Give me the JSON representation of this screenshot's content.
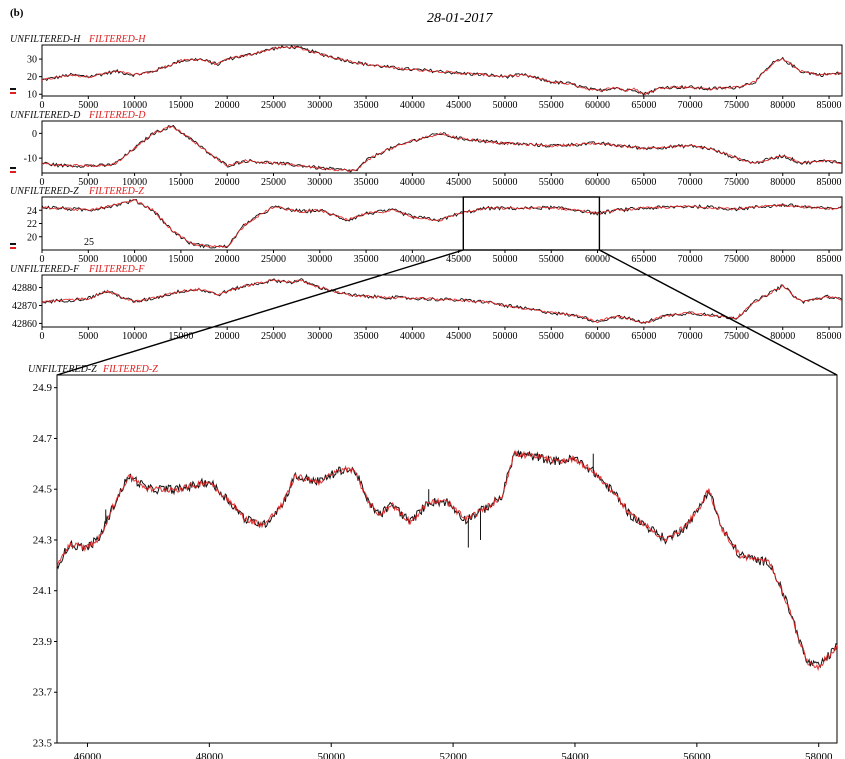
{
  "figure": {
    "panel_label": "(b)",
    "date": "28-01-2017"
  },
  "colors": {
    "unfiltered": "#111111",
    "filtered": "#e02020",
    "frame": "#000000"
  },
  "chart_data": [
    {
      "type": "line",
      "id": "H",
      "legend": [
        "UNFILTERED-H",
        "FILTERED-H"
      ],
      "series": [
        {
          "name": "UNFILTERED-H"
        },
        {
          "name": "FILTERED-H"
        }
      ],
      "xlim": [
        0,
        86400
      ],
      "ylim": [
        9,
        38
      ],
      "yticks": [
        10,
        20,
        30
      ],
      "xticks": [
        0,
        5000,
        10000,
        15000,
        20000,
        25000,
        30000,
        35000,
        40000,
        45000,
        50000,
        55000,
        60000,
        65000,
        70000,
        75000,
        80000,
        85000
      ],
      "x": [
        0,
        3000,
        5000,
        8000,
        10000,
        12000,
        15000,
        17000,
        19000,
        20000,
        22000,
        25000,
        27000,
        28000,
        30000,
        33000,
        35000,
        38000,
        40000,
        43000,
        45000,
        48000,
        50000,
        52000,
        55000,
        57000,
        59000,
        60000,
        62000,
        63000,
        64000,
        65000,
        67000,
        70000,
        72000,
        75000,
        77000,
        79000,
        80000,
        82000,
        84000,
        86400
      ],
      "y": [
        18,
        21,
        20,
        23,
        21,
        23,
        29,
        30,
        27,
        30,
        32,
        36,
        37,
        36,
        33,
        29,
        27,
        25,
        24,
        23,
        22,
        21,
        20,
        21,
        17,
        16,
        13,
        12,
        14,
        12,
        13,
        10,
        14,
        14,
        13,
        14,
        17,
        28,
        30,
        23,
        21,
        22
      ]
    },
    {
      "type": "line",
      "id": "D",
      "legend": [
        "UNFILTERED-D",
        "FILTERED-D"
      ],
      "series": [
        {
          "name": "UNFILTERED-D"
        },
        {
          "name": "FILTERED-D"
        }
      ],
      "xlim": [
        0,
        86400
      ],
      "ylim": [
        -16,
        5
      ],
      "yticks": [
        -10,
        0
      ],
      "xticks": [
        0,
        5000,
        10000,
        15000,
        20000,
        25000,
        30000,
        35000,
        40000,
        45000,
        50000,
        55000,
        60000,
        65000,
        70000,
        75000,
        80000,
        85000
      ],
      "x": [
        0,
        2000,
        5000,
        7000,
        8000,
        10000,
        12000,
        14000,
        16000,
        18000,
        20000,
        22000,
        25000,
        28000,
        30000,
        33000,
        34000,
        35000,
        37000,
        40000,
        42000,
        43000,
        45000,
        50000,
        55000,
        60000,
        65000,
        70000,
        72000,
        75000,
        77000,
        80000,
        82000,
        85000,
        86400
      ],
      "y": [
        -12,
        -13,
        -13,
        -13,
        -12,
        -6,
        0,
        3,
        -2,
        -8,
        -13,
        -11,
        -12,
        -13,
        -14,
        -15,
        -15,
        -11,
        -7,
        -3,
        -1,
        0,
        -2,
        -4,
        -5,
        -4,
        -6,
        -5,
        -6,
        -10,
        -12,
        -9,
        -12,
        -11,
        -12
      ]
    },
    {
      "type": "line",
      "id": "Z",
      "legend": [
        "UNFILTERED-Z",
        "FILTERED-Z"
      ],
      "series": [
        {
          "name": "UNFILTERED-Z"
        },
        {
          "name": "FILTERED-Z"
        }
      ],
      "annotation": "25",
      "xlim": [
        0,
        86400
      ],
      "ylim": [
        18,
        26
      ],
      "yticks": [
        20,
        22,
        24
      ],
      "xticks": [
        0,
        5000,
        10000,
        15000,
        20000,
        25000,
        30000,
        35000,
        40000,
        45000,
        50000,
        55000,
        60000,
        65000,
        70000,
        75000,
        80000,
        85000
      ],
      "zoom_range": [
        45500,
        60200
      ],
      "x": [
        0,
        5000,
        8000,
        10000,
        12000,
        14000,
        16000,
        18000,
        20000,
        22000,
        25000,
        28000,
        30000,
        33000,
        35000,
        38000,
        40000,
        43000,
        45000,
        48000,
        52000,
        55000,
        58000,
        60000,
        62000,
        65000,
        70000,
        75000,
        80000,
        85000,
        86400
      ],
      "y": [
        24.5,
        24,
        24.8,
        25.5,
        24,
        21,
        19,
        18.5,
        18.5,
        22,
        24.5,
        23.8,
        24,
        22.5,
        23.5,
        24,
        23,
        22.5,
        23.5,
        24.3,
        24.3,
        24.4,
        24,
        23.5,
        24,
        24.3,
        24.6,
        24.2,
        24.8,
        24.2,
        24.5
      ]
    },
    {
      "type": "line",
      "id": "F",
      "legend": [
        "UNFILTERED-F",
        "FILTERED-F"
      ],
      "series": [
        {
          "name": "UNFILTERED-F"
        },
        {
          "name": "FILTERED-F"
        }
      ],
      "xlim": [
        0,
        86400
      ],
      "ylim": [
        42858,
        42887
      ],
      "yticks": [
        42860,
        42870,
        42880
      ],
      "xticks": [
        0,
        5000,
        10000,
        15000,
        20000,
        25000,
        30000,
        35000,
        40000,
        45000,
        50000,
        55000,
        60000,
        65000,
        70000,
        75000,
        80000,
        85000
      ],
      "x": [
        0,
        3000,
        5000,
        7000,
        8000,
        10000,
        12000,
        15000,
        17000,
        19000,
        20000,
        22000,
        25000,
        27000,
        28000,
        30000,
        33000,
        35000,
        40000,
        45000,
        48000,
        50000,
        55000,
        58000,
        60000,
        62000,
        64000,
        65000,
        67000,
        70000,
        73000,
        75000,
        77000,
        80000,
        82000,
        85000,
        86400
      ],
      "y": [
        42872,
        42873,
        42874,
        42878,
        42876,
        42872,
        42874,
        42878,
        42879,
        42876,
        42878,
        42881,
        42884,
        42883,
        42884,
        42880,
        42876,
        42875,
        42874,
        42873,
        42872,
        42870,
        42866,
        42864,
        42861,
        42864,
        42862,
        42860,
        42864,
        42866,
        42864,
        42863,
        42872,
        42881,
        42872,
        42875,
        42873
      ]
    },
    {
      "type": "line",
      "id": "Z-zoom",
      "legend": [
        "UNFILTERED-Z",
        "FILTERED-Z"
      ],
      "series": [
        {
          "name": "UNFILTERED-Z"
        },
        {
          "name": "FILTERED-Z"
        }
      ],
      "xlim": [
        45500,
        58300
      ],
      "ylim": [
        23.5,
        24.95
      ],
      "yticks": [
        23.5,
        23.7,
        23.9,
        24.1,
        24.3,
        24.5,
        24.7,
        24.9
      ],
      "ytick_labels": [
        "23.5",
        "23.7",
        "23.9",
        "24.1",
        "24.3",
        "24.5",
        "24.7",
        "24.9"
      ],
      "xticks": [
        46000,
        48000,
        50000,
        52000,
        54000,
        56000,
        58000
      ],
      "x": [
        45500,
        45700,
        46000,
        46200,
        46400,
        46600,
        46700,
        47000,
        47500,
        48000,
        48300,
        48600,
        48900,
        49200,
        49400,
        49800,
        50200,
        50400,
        50600,
        50800,
        51000,
        51300,
        51600,
        51900,
        52200,
        52500,
        52800,
        53000,
        53300,
        53700,
        54000,
        54300,
        54700,
        54900,
        55200,
        55500,
        55800,
        56000,
        56200,
        56400,
        56700,
        57000,
        57200,
        57400,
        57600,
        57800,
        58000,
        58300
      ],
      "y": [
        24.2,
        24.28,
        24.27,
        24.31,
        24.42,
        24.52,
        24.55,
        24.5,
        24.5,
        24.53,
        24.46,
        24.38,
        24.36,
        24.44,
        24.55,
        24.53,
        24.58,
        24.57,
        24.45,
        24.4,
        24.44,
        24.37,
        24.45,
        24.45,
        24.38,
        24.42,
        24.47,
        24.64,
        24.63,
        24.61,
        24.62,
        24.57,
        24.47,
        24.4,
        24.35,
        24.3,
        24.35,
        24.41,
        24.5,
        24.35,
        24.24,
        24.22,
        24.21,
        24.1,
        23.97,
        23.82,
        23.8,
        23.88
      ]
    }
  ]
}
